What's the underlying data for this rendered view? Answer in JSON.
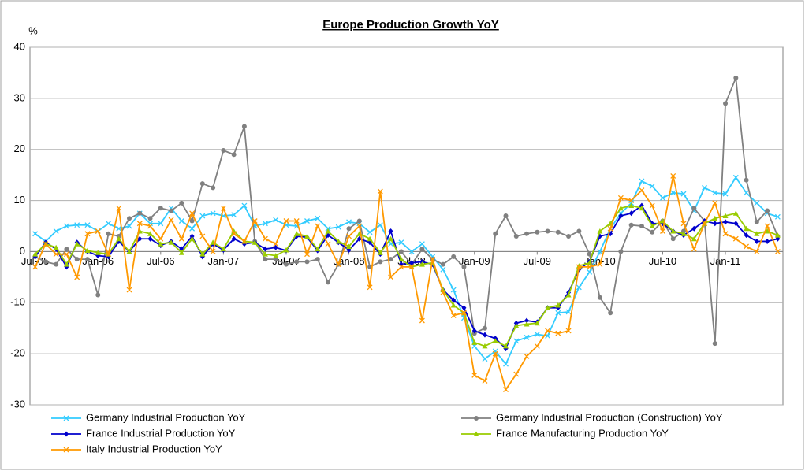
{
  "chart_data": {
    "type": "line",
    "title": "Europe Production Growth YoY",
    "y_label": "%",
    "categories": [
      "Jul-05",
      null,
      null,
      null,
      null,
      null,
      "Jan-06",
      null,
      null,
      null,
      null,
      null,
      "Jul-06",
      null,
      null,
      null,
      null,
      null,
      "Jan-07",
      null,
      null,
      null,
      null,
      null,
      "Jul-07",
      null,
      null,
      null,
      null,
      null,
      "Jan-08",
      null,
      null,
      null,
      null,
      null,
      "Jul-08",
      null,
      null,
      null,
      null,
      null,
      "Jan-09",
      null,
      null,
      null,
      null,
      null,
      "Jul-09",
      null,
      null,
      null,
      null,
      null,
      "Jan-10",
      null,
      null,
      null,
      null,
      null,
      "Jul-10",
      null,
      null,
      null,
      null,
      null,
      "Jan-11",
      null,
      null,
      null,
      null,
      null
    ],
    "series": [
      {
        "name": "Germany Industrial Production YoY",
        "color": "#33ccff",
        "marker": "x",
        "values": [
          3.5,
          2,
          4,
          5,
          5.2,
          5.2,
          4,
          5.5,
          4.5,
          5,
          7.5,
          5.5,
          5.5,
          8.5,
          6,
          4.5,
          7,
          7.5,
          7,
          7.2,
          9,
          5,
          5.5,
          6.2,
          5.2,
          5,
          6,
          6.5,
          4.5,
          4.8,
          5.8,
          5.5,
          3.8,
          5.2,
          1.5,
          1.8,
          0,
          1.5,
          -1,
          -3.5,
          -7.5,
          -13,
          -18.5,
          -21,
          -19.5,
          -22,
          -17.5,
          -16.8,
          -16.2,
          -16.5,
          -12,
          -11.8,
          -7,
          -4,
          0,
          4.5,
          7.5,
          9.5,
          13.8,
          12.8,
          10.5,
          11.5,
          11.3,
          8,
          12.5,
          11.5,
          11.3,
          14.5,
          11.5,
          9.5,
          7.5,
          6.8
        ]
      },
      {
        "name": "Germany Industrial Production (Construction) YoY",
        "color": "#808080",
        "marker": "circle",
        "values": [
          -1,
          -2,
          -2.5,
          0.5,
          -1.5,
          -1.5,
          -8.5,
          3.5,
          3,
          6.5,
          7.5,
          6.5,
          8.5,
          8,
          9.5,
          6,
          13.3,
          12.5,
          19.8,
          19,
          24.5,
          2,
          -1.5,
          -1.5,
          -2.5,
          -2,
          -2,
          -1.5,
          -6,
          -2.5,
          4.5,
          6,
          -3,
          -2,
          -1.5,
          0,
          -2.5,
          0.5,
          -1.5,
          -2.5,
          -1,
          -3,
          -16,
          -15,
          3.5,
          7,
          3,
          3.5,
          3.8,
          4,
          3.8,
          3,
          4,
          -0.5,
          -9,
          -12,
          0,
          5.2,
          5,
          3.8,
          6,
          2.5,
          4,
          8.5,
          6,
          -18,
          29,
          34,
          14,
          5.8,
          8,
          3
        ]
      },
      {
        "name": "France Industrial Production YoY",
        "color": "#0000cc",
        "marker": "diamond",
        "values": [
          -1,
          1.8,
          0.5,
          -3,
          1.8,
          0,
          -0.8,
          -1,
          2,
          0,
          2.5,
          2.5,
          1.2,
          2,
          0.5,
          3,
          -1,
          1.5,
          0.3,
          2.5,
          1.5,
          1.8,
          0.5,
          0.8,
          0.2,
          3,
          2.8,
          0.2,
          3.2,
          1.8,
          0.3,
          2.5,
          1.8,
          -0.5,
          4,
          -2.5,
          -2.2,
          -2,
          -2.5,
          -7.5,
          -9.5,
          -11,
          -15.5,
          -16.3,
          -17,
          -19,
          -14,
          -13.5,
          -13.8,
          -11,
          -11,
          -8,
          -3.5,
          -2,
          3,
          3.5,
          7,
          7.5,
          9,
          5.5,
          5.5,
          4,
          3.2,
          4.5,
          6,
          5.5,
          5.8,
          5.5,
          3.2,
          2,
          2,
          2.5
        ]
      },
      {
        "name": "France Manufacturing Production YoY",
        "color": "#99cc00",
        "marker": "triangle",
        "values": [
          -0.5,
          1.5,
          0.8,
          -2.5,
          1.5,
          0.2,
          -0.2,
          -0.5,
          2.5,
          0,
          4,
          3.5,
          1.5,
          1.8,
          -0.2,
          2.5,
          -0.5,
          1.8,
          0.5,
          4,
          2,
          1.8,
          -0.5,
          -0.8,
          0.3,
          3.5,
          3,
          0.5,
          4,
          2,
          1,
          3.5,
          2.5,
          -0.2,
          2.5,
          -1.5,
          -3,
          -2.5,
          -2.2,
          -7.5,
          -10.5,
          -12,
          -17.8,
          -18.5,
          -17.5,
          -18.5,
          -14.5,
          -14.2,
          -14,
          -11,
          -10.5,
          -8.5,
          -2.8,
          -2.2,
          4,
          5.5,
          8.5,
          9,
          8.5,
          5,
          6,
          4,
          3.5,
          2.5,
          5.5,
          6.5,
          7,
          7.5,
          4.5,
          3.5,
          4,
          3.2
        ]
      },
      {
        "name": "Italy Industrial Production YoY",
        "color": "#ff9900",
        "marker": "x",
        "values": [
          -3,
          1.5,
          -0.5,
          -0.5,
          -5,
          3.5,
          4,
          -0.5,
          8.5,
          -7.5,
          5.5,
          5,
          2.5,
          6.2,
          2.5,
          7.5,
          3,
          0,
          8.5,
          3.5,
          2,
          6,
          2.5,
          1.5,
          6,
          6,
          -0.5,
          5,
          1.5,
          -2.5,
          3,
          5,
          -7,
          11.8,
          -5,
          -3,
          -3,
          -13.5,
          -1.5,
          -8,
          -12.5,
          -12,
          -24.2,
          -25.3,
          -20,
          -27,
          -24,
          -20.5,
          -18.5,
          -15.5,
          -16,
          -15.5,
          -3,
          -3,
          -2.5,
          4.5,
          10.5,
          10,
          12,
          9,
          4,
          14.8,
          5.5,
          0.5,
          5.5,
          9.5,
          3.5,
          2.5,
          1,
          0,
          5,
          0
        ]
      }
    ],
    "ylim": [
      -30,
      40
    ],
    "yticks": [
      -30,
      -20,
      -10,
      0,
      10,
      20,
      30,
      40
    ],
    "grid": true,
    "legend": "bottom"
  }
}
